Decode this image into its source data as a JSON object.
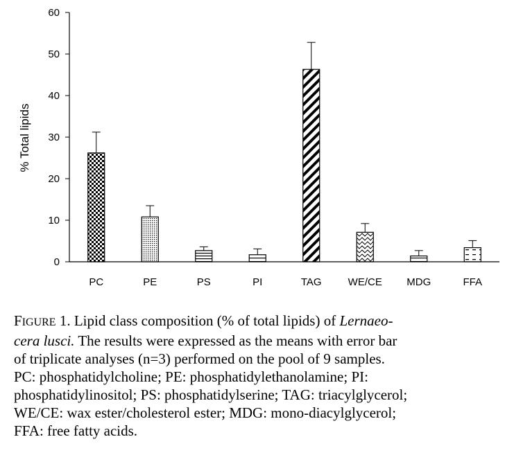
{
  "chart_data": {
    "type": "bar",
    "categories": [
      "PC",
      "PE",
      "PS",
      "PI",
      "TAG",
      "WE/CE",
      "MDG",
      "FFA"
    ],
    "values": [
      26.2,
      10.8,
      2.7,
      1.7,
      46.3,
      7.1,
      1.4,
      3.4
    ],
    "errors": [
      5.0,
      2.7,
      0.9,
      1.4,
      6.5,
      2.1,
      1.3,
      1.7
    ],
    "patterns": [
      "checker",
      "dots",
      "hlines",
      "hlines-sparse",
      "diagonal",
      "wave",
      "hlines-sparse",
      "dashes"
    ],
    "ylabel": "% Total lipids",
    "xlabel": "",
    "ylim": [
      0,
      60
    ],
    "yticks": [
      0,
      10,
      20,
      30,
      40,
      50,
      60
    ],
    "grid": false,
    "error_bars": "upper"
  },
  "caption": {
    "figure_label_first": "F",
    "figure_label_rest": "IGURE",
    "figure_number": " 1.",
    "line1_text": " Lipid class composition (% of total lipids) of ",
    "line1_italic": "Lernaeo-",
    "line2_italic": "cera lusci.",
    "line2_text": " The results were expressed as the means with error bar",
    "line3": "of triplicate analyses (n=3) performed on the pool of 9 samples.",
    "line4": "PC: phosphatidylcholine; PE: phosphatidylethanolamine; PI:",
    "line5": "phosphatidylinositol; PS: phosphatidylserine; TAG: triacylglycerol;",
    "line6": "WE/CE: wax ester/cholesterol ester; MDG: mono-diacylglycerol;",
    "line7": "FFA: free fatty acids."
  }
}
